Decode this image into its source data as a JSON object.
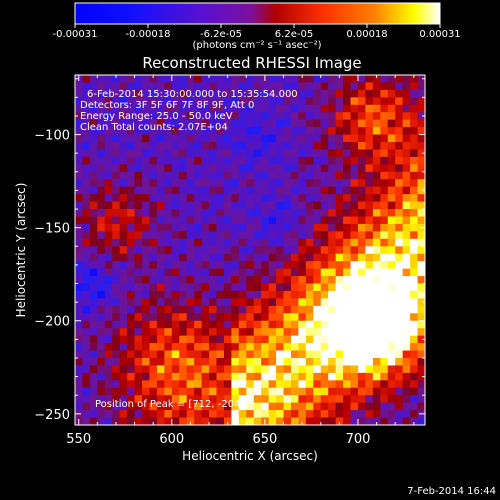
{
  "colorbar": {
    "tick_labels": [
      "-0.00031",
      "-0.00018",
      "-6.2e-05",
      "6.2e-05",
      "0.00018",
      "0.00031"
    ],
    "unit_label": "(photons cm⁻² s⁻¹ asec⁻²)",
    "range": [
      -0.00031,
      0.00031
    ],
    "colors": [
      "#0000ff",
      "#1010ff",
      "#5a10d0",
      "#7a10a0",
      "#b00000",
      "#ff3000",
      "#ff8000",
      "#ffff00",
      "#ffffff"
    ]
  },
  "plot": {
    "title": "Reconstructed RHESSI Image",
    "annotation_lines": [
      "6-Feb-2014 15:30:00.000 to 15:35:54.000",
      "Detectors: 3F 5F 6F 7F 8F 9F, Att 0",
      "Energy Range: 25.0 - 50.0 keV",
      "Clean    Total counts: 2.07E+04"
    ],
    "peak_label": "Position of Peak = [712, -204]",
    "footer_timestamp": "7-Feb-2014 16:44"
  },
  "chart_data": {
    "type": "heatmap",
    "title": "Reconstructed RHESSI Image",
    "xlabel": "Heliocentric X (arcsec)",
    "ylabel": "Heliocentric Y (arcsec)",
    "xlim": [
      548,
      736
    ],
    "ylim": [
      -256,
      -68
    ],
    "x_ticks": [
      550,
      600,
      650,
      700
    ],
    "y_ticks": [
      -100,
      -150,
      -200,
      -250
    ],
    "colorscale_range": [
      -0.00031,
      0.00031
    ],
    "peak_position": [
      712,
      -204
    ],
    "grid_cells": 47,
    "regions": [
      {
        "name": "bright band",
        "x": [
          640,
          736
        ],
        "y": [
          -256,
          -110
        ],
        "level": 0.8
      },
      {
        "name": "southwest blob",
        "x": [
          550,
          640
        ],
        "y": [
          -256,
          -190
        ],
        "level": 0.6
      },
      {
        "name": "northwest arc",
        "x": [
          565,
          610
        ],
        "y": [
          -165,
          -120
        ],
        "level": 0.55
      },
      {
        "name": "northeast arc",
        "x": [
          670,
          736
        ],
        "y": [
          -120,
          -90
        ],
        "level": 0.6
      }
    ]
  }
}
